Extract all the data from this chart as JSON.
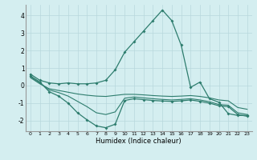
{
  "xlabel": "Humidex (Indice chaleur)",
  "x_values": [
    0,
    1,
    2,
    3,
    4,
    5,
    6,
    7,
    8,
    9,
    10,
    11,
    12,
    13,
    14,
    15,
    16,
    17,
    18,
    19,
    20,
    21,
    22,
    23
  ],
  "line1": [
    0.65,
    0.3,
    0.15,
    0.1,
    0.15,
    0.1,
    0.1,
    0.15,
    0.3,
    0.9,
    1.9,
    2.5,
    3.1,
    3.7,
    4.3,
    3.7,
    2.3,
    -0.1,
    0.2,
    -0.75,
    -0.95,
    -1.6,
    -1.7,
    -1.7
  ],
  "line2": [
    0.55,
    0.2,
    -0.35,
    -0.6,
    -1.0,
    -1.55,
    -1.95,
    -2.3,
    -2.4,
    -2.2,
    -0.85,
    -0.75,
    -0.8,
    -0.85,
    -0.88,
    -0.9,
    -0.87,
    -0.82,
    -0.9,
    -1.0,
    -1.15,
    -1.2,
    -1.65,
    -1.75
  ],
  "line3": [
    0.5,
    0.15,
    -0.25,
    -0.4,
    -0.6,
    -0.9,
    -1.2,
    -1.55,
    -1.65,
    -1.5,
    -0.72,
    -0.65,
    -0.7,
    -0.75,
    -0.79,
    -0.82,
    -0.79,
    -0.75,
    -0.82,
    -0.92,
    -1.08,
    -1.12,
    -1.55,
    -1.65
  ],
  "line4": [
    0.45,
    0.1,
    -0.18,
    -0.28,
    -0.38,
    -0.48,
    -0.55,
    -0.6,
    -0.62,
    -0.56,
    -0.5,
    -0.5,
    -0.53,
    -0.57,
    -0.6,
    -0.62,
    -0.6,
    -0.57,
    -0.62,
    -0.7,
    -0.82,
    -0.87,
    -1.25,
    -1.35
  ],
  "line_color": "#2e7d6e",
  "bg_color": "#d4eef0",
  "grid_color": "#b8d8dc",
  "ylim": [
    -2.6,
    4.6
  ],
  "yticks": [
    -2,
    -1,
    0,
    1,
    2,
    3,
    4
  ]
}
